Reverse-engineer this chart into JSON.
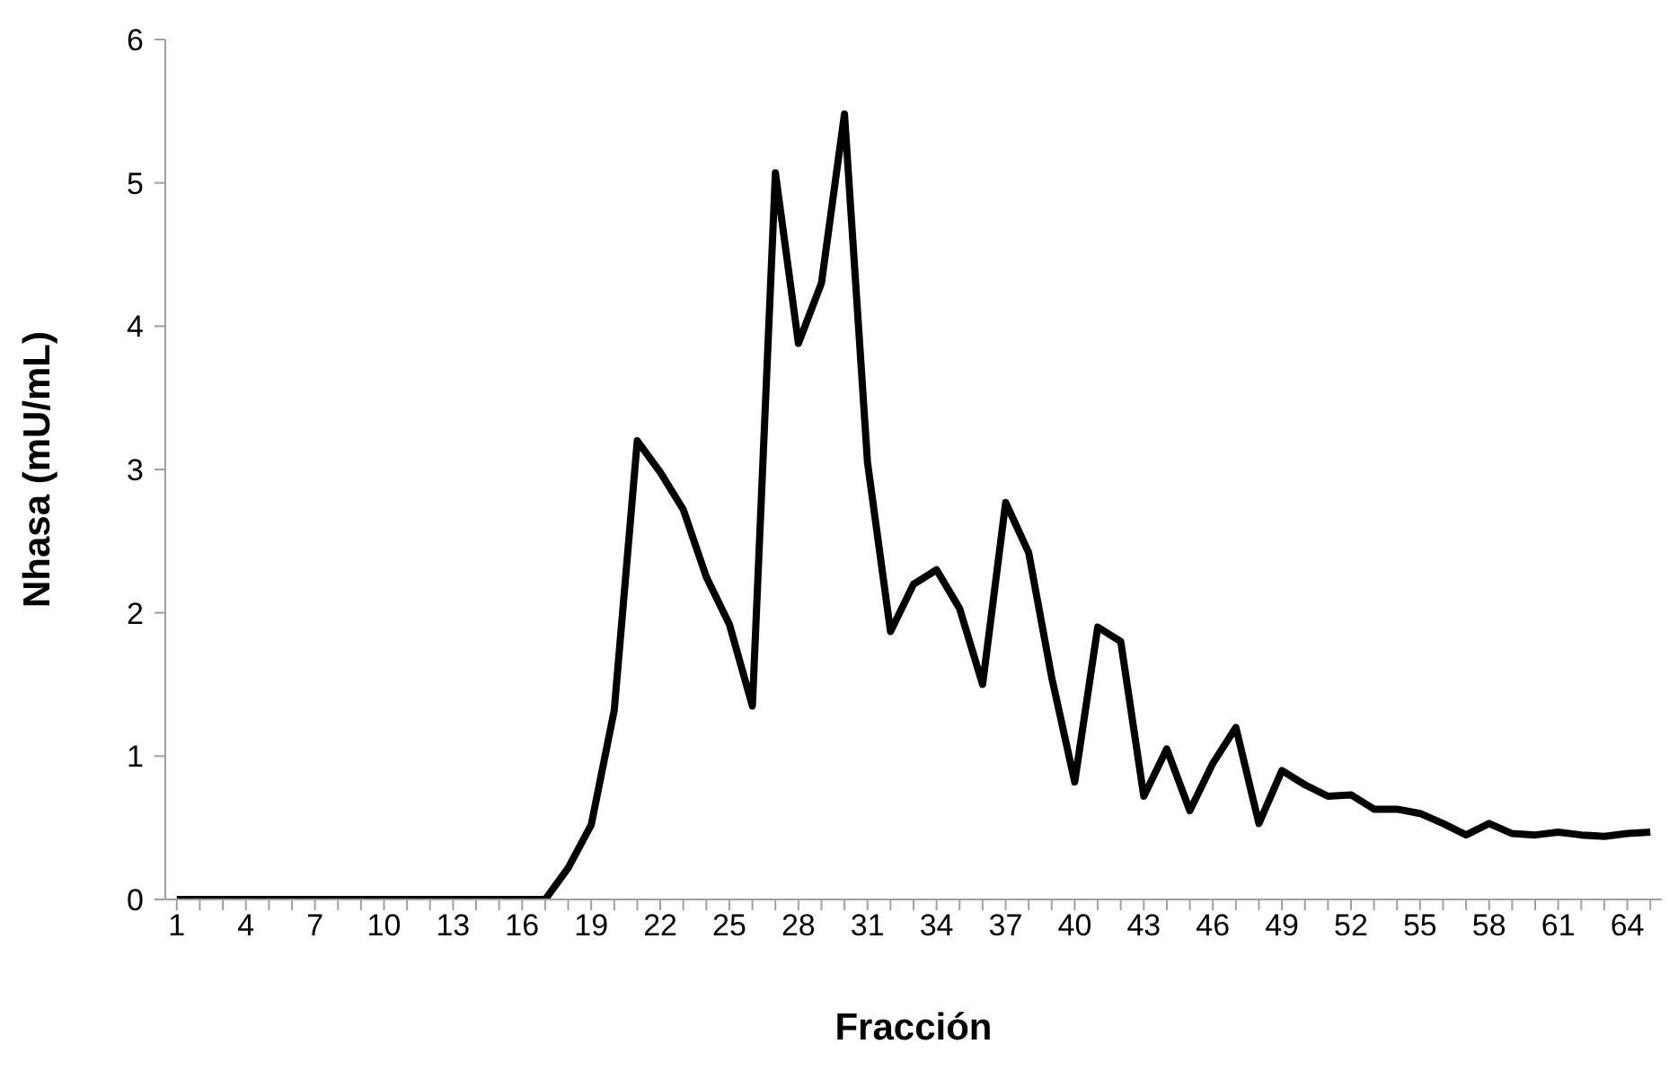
{
  "chart_data": {
    "type": "line",
    "xlabel": "Fracción",
    "ylabel": "Nhasa (mU/mL)",
    "categories": [
      "1",
      null,
      null,
      "4",
      null,
      null,
      "7",
      null,
      null,
      "10",
      null,
      null,
      "13",
      null,
      null,
      "16",
      null,
      null,
      "19",
      null,
      null,
      "22",
      null,
      null,
      "25",
      null,
      null,
      "28",
      null,
      null,
      "31",
      null,
      null,
      "34",
      null,
      null,
      "37",
      null,
      null,
      "40",
      null,
      null,
      "43",
      null,
      null,
      "46",
      null,
      null,
      "49",
      null,
      null,
      "52",
      null,
      null,
      "55",
      null,
      null,
      "58",
      null,
      null,
      "61",
      null,
      null,
      "64",
      null
    ],
    "series": [
      {
        "color": "#000000",
        "values": [
          0,
          0,
          0,
          0,
          0,
          0,
          0,
          0,
          0,
          0,
          0,
          0,
          0,
          0,
          0,
          0,
          0,
          0.22,
          0.52,
          1.32,
          3.2,
          2.98,
          2.72,
          2.25,
          1.92,
          1.35,
          5.07,
          3.88,
          4.3,
          5.48,
          3.05,
          1.87,
          2.2,
          2.3,
          2.03,
          1.5,
          2.77,
          2.42,
          1.55,
          0.82,
          1.9,
          1.8,
          0.72,
          1.05,
          0.62,
          0.95,
          1.2,
          0.53,
          0.9,
          0.8,
          0.72,
          0.73,
          0.63,
          0.63,
          0.6,
          0.53,
          0.45,
          0.53,
          0.46,
          0.45,
          0.47,
          0.45,
          0.44,
          0.46,
          0.47
        ]
      }
    ],
    "ylim": [
      0,
      6
    ],
    "yticks": [
      0,
      1,
      2,
      3,
      4,
      5,
      6
    ],
    "marker": "none",
    "line_style": "solid"
  }
}
